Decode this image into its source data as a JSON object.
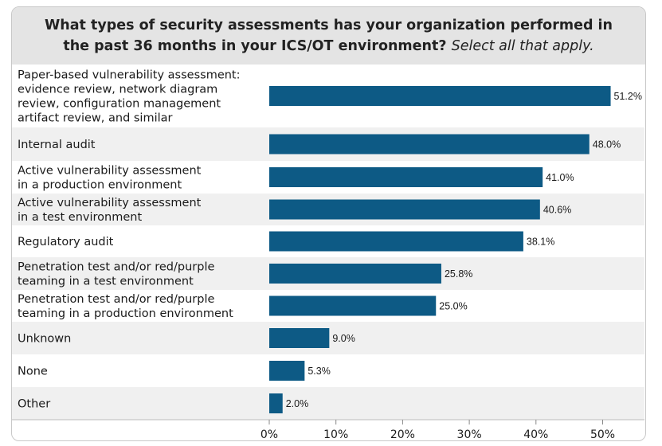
{
  "title": {
    "main": "What types of security assessments has your organization performed in the past 36 months in your ICS/OT environment?",
    "sub": "Select all that apply."
  },
  "colors": {
    "bar": "#0d5a85",
    "stripe": "#f0f0f0",
    "title_bg": "#e4e4e4"
  },
  "chart_data": {
    "type": "bar",
    "orientation": "horizontal",
    "categories": [
      "Paper-based vulnerability assessment: evidence review, network diagram review, configuration management artifact review, and similar",
      "Internal audit",
      "Active vulnerability assessment in a production environment",
      "Active vulnerability assessment in a test environment",
      "Regulatory audit",
      "Penetration test and/or red/purple teaming in a test environment",
      "Penetration test and/or red/purple teaming in a production environment",
      "Unknown",
      "None",
      "Other"
    ],
    "category_lines": [
      [
        "Paper-based vulnerability assessment:",
        "evidence review, network diagram",
        "review, configuration management",
        "artifact review, and similar"
      ],
      [
        "Internal audit"
      ],
      [
        "Active vulnerability assessment",
        "in a production environment"
      ],
      [
        "Active vulnerability assessment",
        "in a test environment"
      ],
      [
        "Regulatory audit"
      ],
      [
        "Penetration test and/or red/purple",
        "teaming in a test environment"
      ],
      [
        "Penetration test and/or red/purple",
        "teaming in a production environment"
      ],
      [
        "Unknown"
      ],
      [
        "None"
      ],
      [
        "Other"
      ]
    ],
    "values": [
      51.2,
      48.0,
      41.0,
      40.6,
      38.1,
      25.8,
      25.0,
      9.0,
      5.3,
      2.0
    ],
    "value_labels": [
      "51.2%",
      "48.0%",
      "41.0%",
      "40.6%",
      "38.1%",
      "25.8%",
      "25.0%",
      "9.0%",
      "5.3%",
      "2.0%"
    ],
    "xlim": [
      0,
      55
    ],
    "xticks": [
      0,
      10,
      20,
      30,
      40,
      50
    ],
    "xtick_labels": [
      "0%",
      "10%",
      "20%",
      "30%",
      "40%",
      "50%"
    ],
    "grid": false,
    "legend": "none"
  }
}
